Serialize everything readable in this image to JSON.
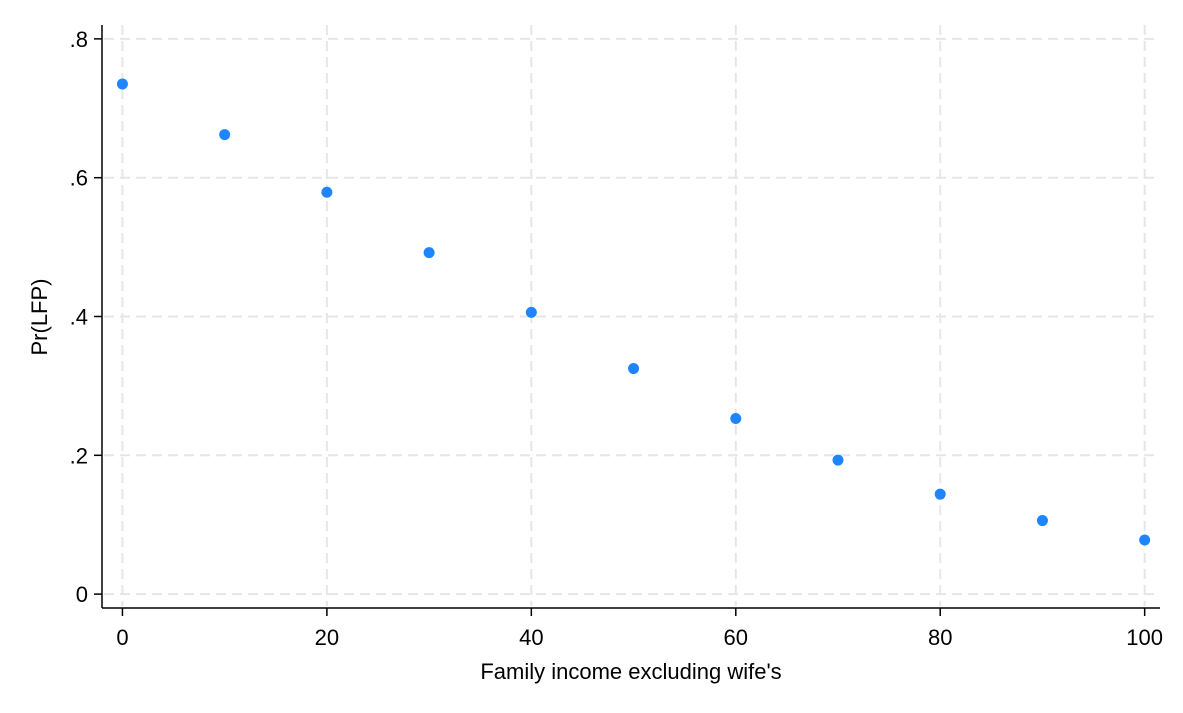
{
  "chart_data": {
    "type": "scatter",
    "title": "",
    "xlabel": "Family income excluding wife's",
    "ylabel": "Pr(LFP)",
    "xlim": [
      -2,
      101.5
    ],
    "ylim": [
      -0.02,
      0.82
    ],
    "x_ticks": [
      0,
      20,
      40,
      60,
      80,
      100
    ],
    "x_tick_labels": [
      "0",
      "20",
      "40",
      "60",
      "80",
      "100"
    ],
    "y_ticks": [
      0,
      0.2,
      0.4,
      0.6,
      0.8
    ],
    "y_tick_labels": [
      "0",
      ".2",
      ".4",
      ".6",
      ".8"
    ],
    "grid": true,
    "series": [
      {
        "marker_color": "#1f85ff",
        "x": [
          0,
          10,
          20,
          30,
          40,
          50,
          60,
          70,
          80,
          90,
          100
        ],
        "y": [
          0.735,
          0.662,
          0.579,
          0.492,
          0.406,
          0.325,
          0.253,
          0.193,
          0.144,
          0.106,
          0.078
        ]
      }
    ]
  }
}
